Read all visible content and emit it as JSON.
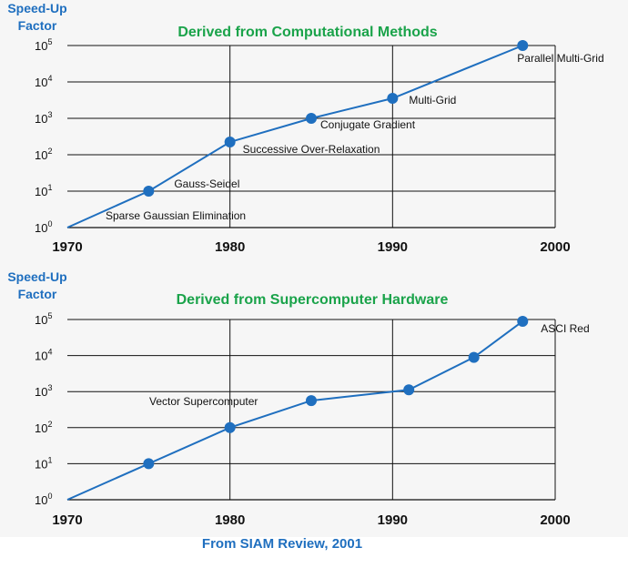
{
  "chart_data": [
    {
      "type": "line",
      "title": "Derived from Computational Methods",
      "ylabel_line1": "Speed-Up",
      "ylabel_line2": "Factor",
      "xlim": [
        1970,
        2000
      ],
      "xticks": [
        "1970",
        "1980",
        "1990",
        "2000"
      ],
      "ylim_log10": [
        0,
        5
      ],
      "yscale": "log",
      "yticks": [
        {
          "base": "10",
          "exp": "0"
        },
        {
          "base": "10",
          "exp": "1"
        },
        {
          "base": "10",
          "exp": "2"
        },
        {
          "base": "10",
          "exp": "3"
        },
        {
          "base": "10",
          "exp": "4"
        },
        {
          "base": "10",
          "exp": "5"
        }
      ],
      "grid": true,
      "line_color": "#1f6fbf",
      "points": [
        {
          "x": 1970,
          "log10_y": 0,
          "marker": false,
          "label": "Sparse Gaussian Elimination"
        },
        {
          "x": 1975,
          "log10_y": 1,
          "marker": true,
          "label": "Gauss-Seidel"
        },
        {
          "x": 1980,
          "log10_y": 2.35,
          "marker": true,
          "label": "Successive Over-Relaxation"
        },
        {
          "x": 1985,
          "log10_y": 3,
          "marker": true,
          "label": "Conjugate Gradient"
        },
        {
          "x": 1990,
          "log10_y": 3.55,
          "marker": true,
          "label": "Multi-Grid"
        },
        {
          "x": 1998,
          "log10_y": 5,
          "marker": true,
          "label": "Parallel Multi-Grid"
        }
      ]
    },
    {
      "type": "line",
      "title": "Derived from Supercomputer Hardware",
      "ylabel_line1": "Speed-Up",
      "ylabel_line2": "Factor",
      "xlim": [
        1970,
        2000
      ],
      "xticks": [
        "1970",
        "1980",
        "1990",
        "2000"
      ],
      "ylim_log10": [
        0,
        5
      ],
      "yscale": "log",
      "yticks": [
        {
          "base": "10",
          "exp": "0"
        },
        {
          "base": "10",
          "exp": "1"
        },
        {
          "base": "10",
          "exp": "2"
        },
        {
          "base": "10",
          "exp": "3"
        },
        {
          "base": "10",
          "exp": "4"
        },
        {
          "base": "10",
          "exp": "5"
        }
      ],
      "grid": true,
      "line_color": "#1f6fbf",
      "points": [
        {
          "x": 1970,
          "log10_y": 0,
          "marker": false,
          "label": ""
        },
        {
          "x": 1975,
          "log10_y": 1,
          "marker": true,
          "label": ""
        },
        {
          "x": 1980,
          "log10_y": 2,
          "marker": true,
          "label": ""
        },
        {
          "x": 1985,
          "log10_y": 2.75,
          "marker": true,
          "label": "Vector Supercomputer"
        },
        {
          "x": 1991,
          "log10_y": 3.05,
          "marker": true,
          "label": ""
        },
        {
          "x": 1995,
          "log10_y": 3.95,
          "marker": true,
          "label": ""
        },
        {
          "x": 1998,
          "log10_y": 4.95,
          "marker": true,
          "label": "ASCI Red"
        }
      ]
    }
  ],
  "source": "From SIAM Review, 2001"
}
